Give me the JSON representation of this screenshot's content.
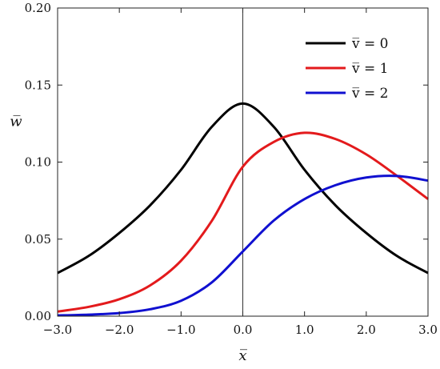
{
  "chart_data": {
    "type": "line",
    "xlabel": "x̅",
    "ylabel": "w̅",
    "xlim": [
      -3.0,
      3.0
    ],
    "ylim": [
      0.0,
      0.2
    ],
    "x_ticks": [
      "−3.0",
      "−2.0",
      "−1.0",
      "0.0",
      "1.0",
      "2.0",
      "3.0"
    ],
    "y_ticks": [
      "0.00",
      "0.05",
      "0.10",
      "0.15",
      "0.20"
    ],
    "grid": false,
    "vertical_line_x": 0.0,
    "legend_position": "top-right",
    "series": [
      {
        "name": "v̅ = 0",
        "color": "#000000",
        "x": [
          -3.0,
          -2.5,
          -2.0,
          -1.5,
          -1.0,
          -0.5,
          0.0,
          0.5,
          1.0,
          1.5,
          2.0,
          2.5,
          3.0
        ],
        "y": [
          0.028,
          0.039,
          0.054,
          0.072,
          0.095,
          0.123,
          0.138,
          0.123,
          0.095,
          0.072,
          0.054,
          0.039,
          0.028
        ]
      },
      {
        "name": "v̅ = 1",
        "color": "#e31a1c",
        "x": [
          -3.0,
          -2.5,
          -2.0,
          -1.5,
          -1.0,
          -0.5,
          0.0,
          0.5,
          1.0,
          1.5,
          2.0,
          2.5,
          3.0
        ],
        "y": [
          0.003,
          0.006,
          0.011,
          0.02,
          0.036,
          0.062,
          0.097,
          0.113,
          0.119,
          0.115,
          0.105,
          0.091,
          0.076
        ]
      },
      {
        "name": "v̅ = 2",
        "color": "#1010d0",
        "x": [
          -3.0,
          -2.5,
          -2.0,
          -1.5,
          -1.0,
          -0.5,
          0.0,
          0.5,
          1.0,
          1.5,
          2.0,
          2.5,
          3.0
        ],
        "y": [
          0.0005,
          0.001,
          0.002,
          0.0045,
          0.01,
          0.022,
          0.042,
          0.062,
          0.076,
          0.085,
          0.09,
          0.091,
          0.088
        ]
      }
    ]
  }
}
